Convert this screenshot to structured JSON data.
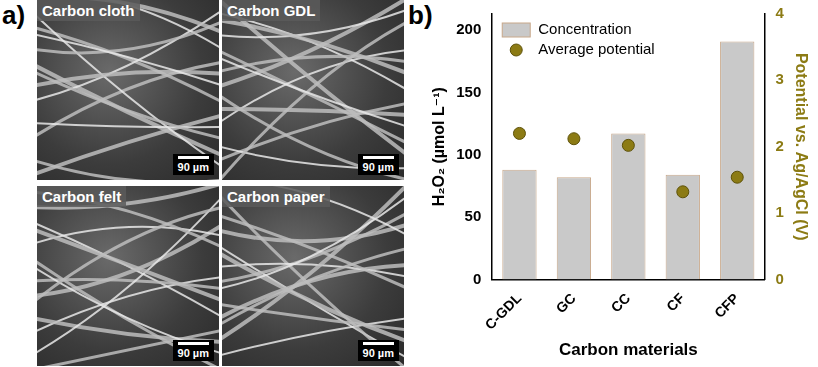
{
  "image_panel": {
    "label": "a)",
    "images": [
      {
        "caption": "Carbon cloth",
        "scale_bar": "90 µm"
      },
      {
        "caption": "Carbon GDL",
        "scale_bar": "90 µm"
      },
      {
        "caption": "Carbon felt",
        "scale_bar": "90 µm"
      },
      {
        "caption": "Carbon paper",
        "scale_bar": "90 µm"
      }
    ]
  },
  "chart_data": {
    "type": "bar",
    "panel_label": "b)",
    "x_label": "Carbon materials",
    "y_label": "H₂O₂ (µmol L⁻¹)",
    "y2_label": "Potential vs. Ag/AgCl (V)",
    "categories": [
      "C-GDL",
      "GC",
      "CC",
      "CF",
      "CFP"
    ],
    "series": [
      {
        "name": "Concentration",
        "type": "bar",
        "color": "#c9c9c9",
        "values": [
          88,
          82,
          117,
          84,
          191
        ]
      },
      {
        "name": "Average potential",
        "type": "scatter",
        "color": "#8c7b14",
        "marker": "circle",
        "axis": "y2",
        "values": [
          2.2,
          2.12,
          2.02,
          1.32,
          1.54
        ]
      }
    ],
    "ylim": [
      0,
      213
    ],
    "yticks": [
      0,
      50,
      100,
      150,
      200
    ],
    "y2lim": [
      0,
      4
    ],
    "y2ticks": [
      0,
      1,
      2,
      3,
      4
    ],
    "grid": false,
    "legend": "upper left"
  }
}
